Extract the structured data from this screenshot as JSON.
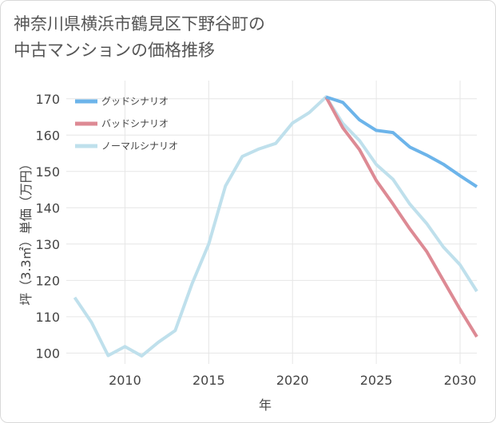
{
  "title_lines": [
    "神奈川県横浜市鶴見区下野谷町の",
    "中古マンションの価格推移"
  ],
  "chart_data": {
    "type": "line",
    "xlabel": "年",
    "ylabel": "坪（3.3㎡）単価（万円）",
    "xlim": [
      2006.5,
      2031
    ],
    "ylim": [
      97,
      175
    ],
    "x_ticks": [
      2010,
      2015,
      2020,
      2025,
      2030
    ],
    "y_ticks": [
      100,
      110,
      120,
      130,
      140,
      150,
      160,
      170
    ],
    "grid": true,
    "legend_position": "top-left",
    "series": [
      {
        "name": "グッドシナリオ",
        "color": "#6cb4ea",
        "x": [
          2022,
          2023,
          2024,
          2025,
          2026,
          2027,
          2028,
          2029,
          2030,
          2031
        ],
        "values": [
          170.5,
          169,
          164.2,
          161.3,
          160.7,
          156.7,
          154.5,
          152,
          148.8,
          145.8
        ]
      },
      {
        "name": "バッドシナリオ",
        "color": "#dd8a94",
        "x": [
          2022,
          2023,
          2024,
          2025,
          2026,
          2027,
          2028,
          2029,
          2030,
          2031
        ],
        "values": [
          170.5,
          162,
          156,
          147.5,
          141,
          134.2,
          128,
          120,
          112,
          104.5
        ]
      },
      {
        "name": "ノーマルシナリオ",
        "color": "#bfe0ec",
        "x": [
          2007,
          2008,
          2009,
          2010,
          2011,
          2012,
          2013,
          2014,
          2015,
          2016,
          2017,
          2018,
          2019,
          2020,
          2021,
          2022,
          2023,
          2024,
          2025,
          2026,
          2027,
          2028,
          2029,
          2030,
          2031
        ],
        "values": [
          115.3,
          108.5,
          99.3,
          101.8,
          99.2,
          103,
          106.2,
          119,
          130,
          146,
          154.1,
          156.2,
          157.7,
          163.3,
          166.2,
          170.5,
          163.2,
          158.5,
          151.9,
          147.8,
          141,
          135.7,
          129.2,
          124.3,
          117
        ]
      }
    ]
  }
}
